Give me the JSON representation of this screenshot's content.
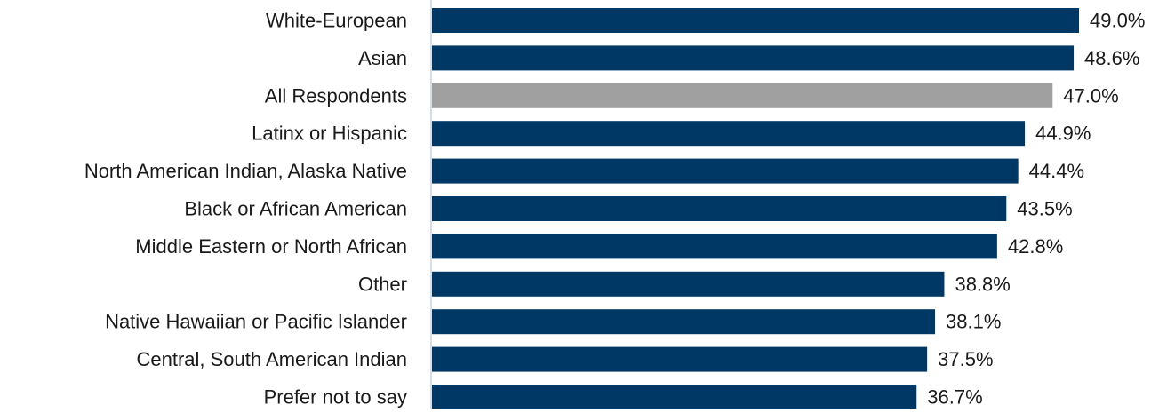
{
  "chart_data": {
    "type": "bar",
    "orientation": "horizontal",
    "title": "",
    "xlabel": "",
    "ylabel": "",
    "value_suffix": "%",
    "xlim": [
      0,
      50
    ],
    "grid": false,
    "legend": "none",
    "categories": [
      "White-European",
      "Asian",
      "All Respondents",
      "Latinx or Hispanic",
      "North American Indian, Alaska Native",
      "Black or African American",
      "Middle Eastern or North African",
      "Other",
      "Native Hawaiian or Pacific Islander",
      "Central, South American Indian",
      "Prefer not to say"
    ],
    "values": [
      49.0,
      48.6,
      47.0,
      44.9,
      44.4,
      43.5,
      42.8,
      38.8,
      38.1,
      37.5,
      36.7
    ],
    "value_labels": [
      "49.0%",
      "48.6%",
      "47.0%",
      "44.9%",
      "44.4%",
      "43.5%",
      "42.8%",
      "38.8%",
      "38.1%",
      "37.5%",
      "36.7%"
    ],
    "colors": {
      "default": "#003865",
      "highlight": "#a0a0a0",
      "axis": "#c8d4e0",
      "text": "#1a1a1a"
    },
    "highlight_category": "All Respondents"
  }
}
